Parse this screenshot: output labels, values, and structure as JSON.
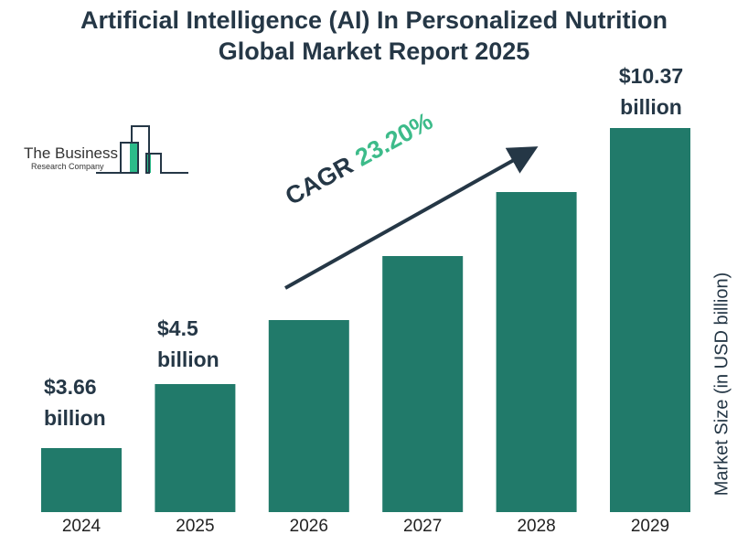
{
  "chart_data": {
    "type": "bar",
    "title": "Artificial Intelligence (AI) In Personalized Nutrition Global Market Report 2025",
    "categories": [
      "2024",
      "2025",
      "2026",
      "2027",
      "2028",
      "2029"
    ],
    "values": [
      3.66,
      4.5,
      5.54,
      6.83,
      8.42,
      10.37
    ],
    "data_labels": {
      "2024": "$3.66 billion",
      "2025": "$4.5 billion",
      "2029": "$10.37 billion"
    },
    "ylabel": "Market Size (in USD billion)",
    "xlabel": "",
    "grid": false,
    "bar_color": "#217a6a",
    "annotation": {
      "label": "CAGR",
      "value": "23.20%",
      "value_color": "#3dbb8a"
    }
  },
  "title_line1": "Artificial Intelligence (AI) In Personalized Nutrition",
  "title_line2": "Global Market Report 2025",
  "labels": {
    "l2024a": "$3.66",
    "l2024b": "billion",
    "l2025a": "$4.5",
    "l2025b": "billion",
    "l2029a": "$10.37",
    "l2029b": "billion"
  },
  "logo": {
    "line1": "The Business",
    "line2": "Research Company"
  }
}
